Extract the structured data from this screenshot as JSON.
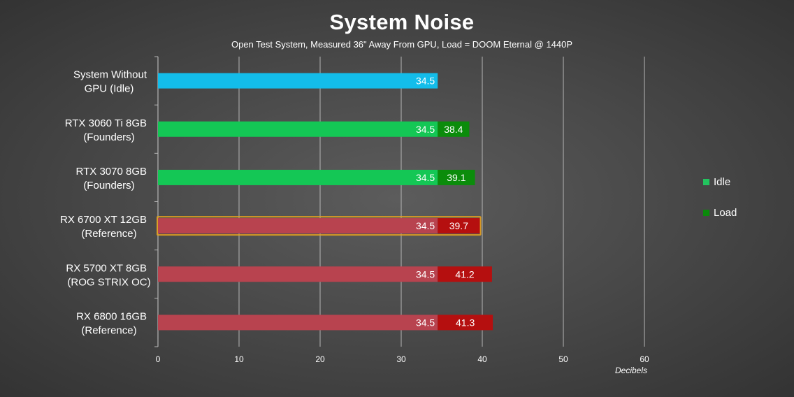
{
  "chart_data": {
    "type": "bar",
    "title": "System Noise",
    "subtitle": "Open Test System, Measured 36\" Away From GPU, Load = DOOM Eternal @ 1440P",
    "xlabel": "Decibels",
    "xlim": [
      0,
      60
    ],
    "x_ticks": [
      0,
      10,
      20,
      30,
      40,
      50,
      60
    ],
    "grid": "vertical",
    "legend_position": "right",
    "series": [
      {
        "name": "Idle",
        "color": "#22c35e"
      },
      {
        "name": "Load",
        "color": "#0a8a0a"
      }
    ],
    "categories": [
      {
        "line1": "System Without",
        "line2": "GPU (Idle)",
        "idle": 34.5,
        "load": null,
        "idle_color": "#13bdea",
        "load_color": null,
        "highlight": false
      },
      {
        "line1": "RTX 3060 Ti 8GB",
        "line2": "(Founders)",
        "idle": 34.5,
        "load": 38.4,
        "idle_color": "#14c755",
        "load_color": "#0b8c0b",
        "highlight": false
      },
      {
        "line1": "RTX 3070 8GB",
        "line2": "(Founders)",
        "idle": 34.5,
        "load": 39.1,
        "idle_color": "#14c755",
        "load_color": "#0b8c0b",
        "highlight": false
      },
      {
        "line1": "RX 6700 XT 12GB",
        "line2": "(Reference)",
        "idle": 34.5,
        "load": 39.7,
        "idle_color": "#b8434f",
        "load_color": "#b50f0f",
        "highlight": true
      },
      {
        "line1": "RX 5700 XT 8GB",
        "line2": "(ROG STRIX OC)",
        "idle": 34.5,
        "load": 41.2,
        "idle_color": "#b8434f",
        "load_color": "#b50f0f",
        "highlight": false
      },
      {
        "line1": "RX 6800 16GB",
        "line2": "(Reference)",
        "idle": 34.5,
        "load": 41.3,
        "idle_color": "#b8434f",
        "load_color": "#b50f0f",
        "highlight": false
      }
    ]
  },
  "legend": {
    "idle_label": "Idle",
    "load_label": "Load"
  }
}
